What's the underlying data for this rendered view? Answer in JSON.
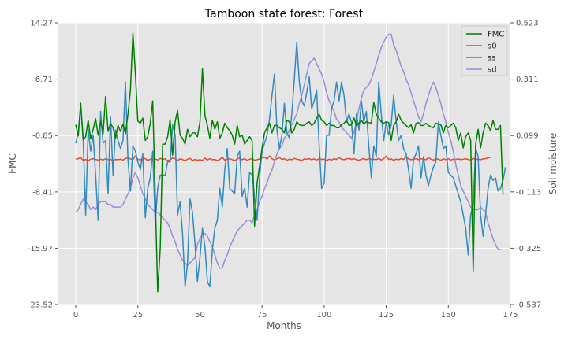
{
  "chart_data": {
    "type": "line",
    "title": "Tamboon state forest: Forest",
    "xlabel": "Months",
    "ylabel_left": "FMC",
    "ylabel_right": "Soil moisture",
    "xlim": [
      -7,
      175
    ],
    "xticks": [
      0,
      25,
      50,
      75,
      100,
      125,
      150,
      175
    ],
    "ylim_left": [
      -23.52,
      14.27
    ],
    "yticks_left": [
      -23.52,
      -15.97,
      -8.41,
      -0.85,
      6.71,
      14.27
    ],
    "ytick_labels_left": [
      "-23.52",
      "-15.97",
      "-8.41",
      "-0.85",
      "6.71",
      "14.27"
    ],
    "ylim_right": [
      -0.537,
      0.523
    ],
    "yticks_right": [
      -0.537,
      -0.325,
      -0.113,
      0.099,
      0.311,
      0.523
    ],
    "ytick_labels_right": [
      "-0.537",
      "-0.325",
      "-0.113",
      "0.099",
      "0.311",
      "0.523"
    ],
    "grid": true,
    "legend_position": "top-right",
    "series": [
      {
        "name": "FMC",
        "axis": "left",
        "color": "#008000",
        "x_start": 0,
        "values": [
          0.6,
          -0.9,
          3.5,
          -1.4,
          -1.0,
          1.2,
          -1.3,
          0.0,
          1.4,
          -0.8,
          1.1,
          -0.6,
          4.4,
          -0.3,
          0.8,
          0.2,
          -1.2,
          0.5,
          -0.3,
          0.7,
          -0.6,
          2.0,
          5.2,
          12.9,
          7.5,
          1.1,
          0.8,
          1.5,
          -1.5,
          -1.0,
          0.8,
          3.8,
          -9.0,
          -21.8,
          -16.0,
          -2.0,
          -2.0,
          -1.0,
          1.3,
          -3.5,
          1.0,
          2.5,
          -0.8,
          -1.2,
          -2.0,
          0.0,
          -1.0,
          -0.5,
          -0.5,
          -1.0,
          1.0,
          8.1,
          1.8,
          0.5,
          -1.2,
          1.2,
          0.0,
          1.0,
          -1.2,
          -0.5,
          0.8,
          0.2,
          -0.2,
          -0.8,
          -2.0,
          0.5,
          -1.0,
          -0.8,
          -2.0,
          -1.5,
          -1.0,
          -1.5,
          -13.0,
          -7.2,
          -5.0,
          -2.5,
          -0.5,
          0.2,
          0.8,
          -0.5,
          0.5,
          0.5,
          0.2,
          0.0,
          -0.5,
          1.2,
          1.0,
          -0.5,
          0.0,
          1.0,
          0.6,
          0.5,
          0.5,
          0.8,
          1.0,
          0.5,
          0.8,
          1.5,
          2.0,
          1.2,
          1.0,
          0.5,
          0.8,
          0.5,
          0.5,
          0.2,
          0.2,
          0.6,
          0.8,
          1.2,
          0.5,
          0.6,
          1.5,
          0.5,
          0.8,
          1.2,
          0.7,
          1.0,
          0.9,
          0.8,
          3.6,
          2.0,
          1.5,
          1.0,
          0.8,
          1.0,
          0.9,
          -1.5,
          0.5,
          1.0,
          2.0,
          1.2,
          0.8,
          0.5,
          0.2,
          0.6,
          -0.5,
          0.8,
          0.9,
          0.5,
          0.5,
          0.8,
          0.5,
          0.3,
          0.2,
          0.8,
          0.7,
          0.6,
          -0.5,
          0.5,
          0.2,
          0.5,
          0.8,
          0.2,
          -1.5,
          -0.5,
          -2.5,
          -1.0,
          -0.5,
          -1.5,
          -19.0,
          -2.0,
          0.0,
          -2.5,
          -0.5,
          0.8,
          0.5,
          -0.2,
          1.2,
          0.0,
          0.0,
          0.5,
          -8.8
        ]
      },
      {
        "name": "s0",
        "axis": "right",
        "color": "#e24a33",
        "x_start": 0,
        "values": [
          0.01,
          0.012,
          0.016,
          0.006,
          0.009,
          0.004,
          0.01,
          0.012,
          0.009,
          0.007,
          0.01,
          0.007,
          0.012,
          0.008,
          0.009,
          0.005,
          0.009,
          0.008,
          0.01,
          0.007,
          0.012,
          0.016,
          0.011,
          0.008,
          0.022,
          0.01,
          0.007,
          0.014,
          0.012,
          0.005,
          0.01,
          0.009,
          0.011,
          0.007,
          0.013,
          0.009,
          0.012,
          0.004,
          0.008,
          0.015,
          0.012,
          0.005,
          0.011,
          0.009,
          0.004,
          0.01,
          0.013,
          0.005,
          0.009,
          0.006,
          0.008,
          0.005,
          0.014,
          0.007,
          0.012,
          0.008,
          0.009,
          0.005,
          0.009,
          0.018,
          0.006,
          0.01,
          0.012,
          0.008,
          0.005,
          0.01,
          0.016,
          0.008,
          0.012,
          0.006,
          0.01,
          0.012,
          0.006,
          0.008,
          0.011,
          0.015,
          0.018,
          0.01,
          0.022,
          0.012,
          0.007,
          0.012,
          0.016,
          0.009,
          0.012,
          0.006,
          0.01,
          0.008,
          0.013,
          0.01,
          0.008,
          0.005,
          0.011,
          0.01,
          0.012,
          0.008,
          0.011,
          0.007,
          0.012,
          0.009,
          0.01,
          0.005,
          0.01,
          0.007,
          0.012,
          0.009,
          0.016,
          0.01,
          0.008,
          0.011,
          0.013,
          0.009,
          0.012,
          0.008,
          0.006,
          0.01,
          0.012,
          0.008,
          0.012,
          0.009,
          0.01,
          0.008,
          0.013,
          0.007,
          0.012,
          0.022,
          0.009,
          0.011,
          0.006,
          0.01,
          0.008,
          0.012,
          0.009,
          0.02,
          0.011,
          0.008,
          0.01,
          0.012,
          0.008,
          0.012,
          0.01,
          0.008,
          0.016,
          0.01,
          0.007,
          0.011,
          0.01,
          0.006,
          0.011,
          0.008,
          0.012,
          0.007,
          0.01,
          0.009,
          0.011,
          0.008,
          0.01,
          0.012,
          0.009,
          0.007,
          0.013,
          0.009,
          0.01,
          0.008,
          0.011,
          0.012,
          0.015,
          0.018
        ]
      },
      {
        "name": "ss",
        "axis": "right",
        "color": "#348abd",
        "x_start": 0,
        "values": [
          0.07,
          0.11,
          0.21,
          0.08,
          -0.2,
          0.12,
          0.04,
          0.1,
          -0.05,
          -0.22,
          0.19,
          0.07,
          0.08,
          -0.12,
          0.17,
          -0.05,
          0.12,
          0.08,
          0.05,
          0.08,
          0.3,
          0.01,
          -0.11,
          0.06,
          0.04,
          0.0,
          -0.03,
          0.03,
          -0.21,
          -0.1,
          -0.06,
          0.04,
          -0.23,
          -0.1,
          -0.05,
          -0.05,
          -0.05,
          0.0,
          0.0,
          0.14,
          0.1,
          -0.2,
          -0.15,
          -0.27,
          -0.47,
          -0.38,
          -0.14,
          -0.19,
          -0.31,
          -0.45,
          -0.36,
          -0.25,
          -0.32,
          -0.45,
          -0.47,
          -0.33,
          -0.25,
          -0.22,
          -0.1,
          -0.17,
          -0.03,
          0.05,
          -0.1,
          -0.11,
          -0.12,
          0.02,
          0.04,
          -0.13,
          -0.1,
          -0.17,
          -0.04,
          -0.05,
          -0.13,
          -0.22,
          -0.06,
          0.04,
          0.07,
          0.1,
          0.16,
          0.25,
          0.33,
          0.12,
          0.05,
          0.1,
          0.22,
          0.11,
          0.09,
          0.18,
          0.31,
          0.45,
          0.3,
          0.23,
          0.21,
          0.26,
          0.32,
          0.2,
          0.23,
          0.27,
          0.06,
          -0.1,
          -0.08,
          0.1,
          0.1,
          0.2,
          0.23,
          0.3,
          0.23,
          0.3,
          0.25,
          0.15,
          0.18,
          0.15,
          0.03,
          0.18,
          0.12,
          0.23,
          0.15,
          0.19,
          0.06,
          -0.06,
          0.06,
          0.02,
          0.3,
          0.18,
          0.08,
          0.15,
          0.1,
          0.14,
          0.25,
          0.15,
          0.08,
          0.1,
          0.05,
          0.03,
          -0.03,
          -0.1,
          0.01,
          0.03,
          0.06,
          -0.06,
          0.02,
          -0.05,
          -0.09,
          -0.05,
          -0.02,
          0.0,
          0.15,
          0.1,
          0.05,
          0.06,
          -0.04,
          -0.05,
          -0.06,
          -0.09,
          -0.12,
          -0.15,
          -0.2,
          -0.25,
          -0.35,
          -0.2,
          -0.16,
          0.05,
          0.02,
          -0.2,
          -0.28,
          -0.2,
          -0.1,
          -0.05,
          -0.07,
          -0.06,
          -0.11,
          -0.1,
          -0.07,
          -0.02
        ]
      },
      {
        "name": "sd",
        "axis": "right",
        "color": "#988ed5",
        "x_start": 0,
        "values": [
          -0.19,
          -0.18,
          -0.16,
          -0.14,
          -0.15,
          -0.16,
          -0.18,
          -0.17,
          -0.18,
          -0.16,
          -0.15,
          -0.15,
          -0.15,
          -0.16,
          -0.16,
          -0.17,
          -0.17,
          -0.17,
          -0.17,
          -0.16,
          -0.14,
          -0.12,
          -0.1,
          -0.06,
          -0.04,
          -0.06,
          -0.09,
          -0.12,
          -0.14,
          -0.16,
          -0.17,
          -0.18,
          -0.19,
          -0.19,
          -0.2,
          -0.21,
          -0.22,
          -0.23,
          -0.25,
          -0.28,
          -0.3,
          -0.33,
          -0.35,
          -0.37,
          -0.38,
          -0.39,
          -0.38,
          -0.37,
          -0.36,
          -0.31,
          -0.29,
          -0.27,
          -0.27,
          -0.28,
          -0.3,
          -0.32,
          -0.35,
          -0.38,
          -0.4,
          -0.4,
          -0.37,
          -0.35,
          -0.32,
          -0.3,
          -0.28,
          -0.26,
          -0.25,
          -0.24,
          -0.23,
          -0.22,
          -0.22,
          -0.23,
          -0.2,
          -0.18,
          -0.15,
          -0.13,
          -0.1,
          -0.08,
          -0.05,
          -0.03,
          0.0,
          0.03,
          0.05,
          0.06,
          0.09,
          0.1,
          0.12,
          0.14,
          0.16,
          0.18,
          0.22,
          0.25,
          0.29,
          0.33,
          0.37,
          0.38,
          0.39,
          0.37,
          0.35,
          0.33,
          0.3,
          0.26,
          0.23,
          0.21,
          0.19,
          0.16,
          0.15,
          0.13,
          0.12,
          0.11,
          0.1,
          0.09,
          0.11,
          0.15,
          0.2,
          0.24,
          0.27,
          0.28,
          0.29,
          0.31,
          0.34,
          0.37,
          0.4,
          0.43,
          0.45,
          0.47,
          0.48,
          0.48,
          0.44,
          0.42,
          0.39,
          0.36,
          0.34,
          0.31,
          0.29,
          0.26,
          0.23,
          0.2,
          0.17,
          0.15,
          0.18,
          0.22,
          0.25,
          0.28,
          0.3,
          0.28,
          0.25,
          0.22,
          0.18,
          0.15,
          0.11,
          0.08,
          0.04,
          -0.01,
          -0.05,
          -0.09,
          -0.11,
          -0.13,
          -0.15,
          -0.17,
          -0.18,
          -0.18,
          -0.18,
          -0.17,
          -0.18,
          -0.19,
          -0.23,
          -0.26,
          -0.29,
          -0.31,
          -0.33,
          -0.33
        ]
      }
    ]
  }
}
